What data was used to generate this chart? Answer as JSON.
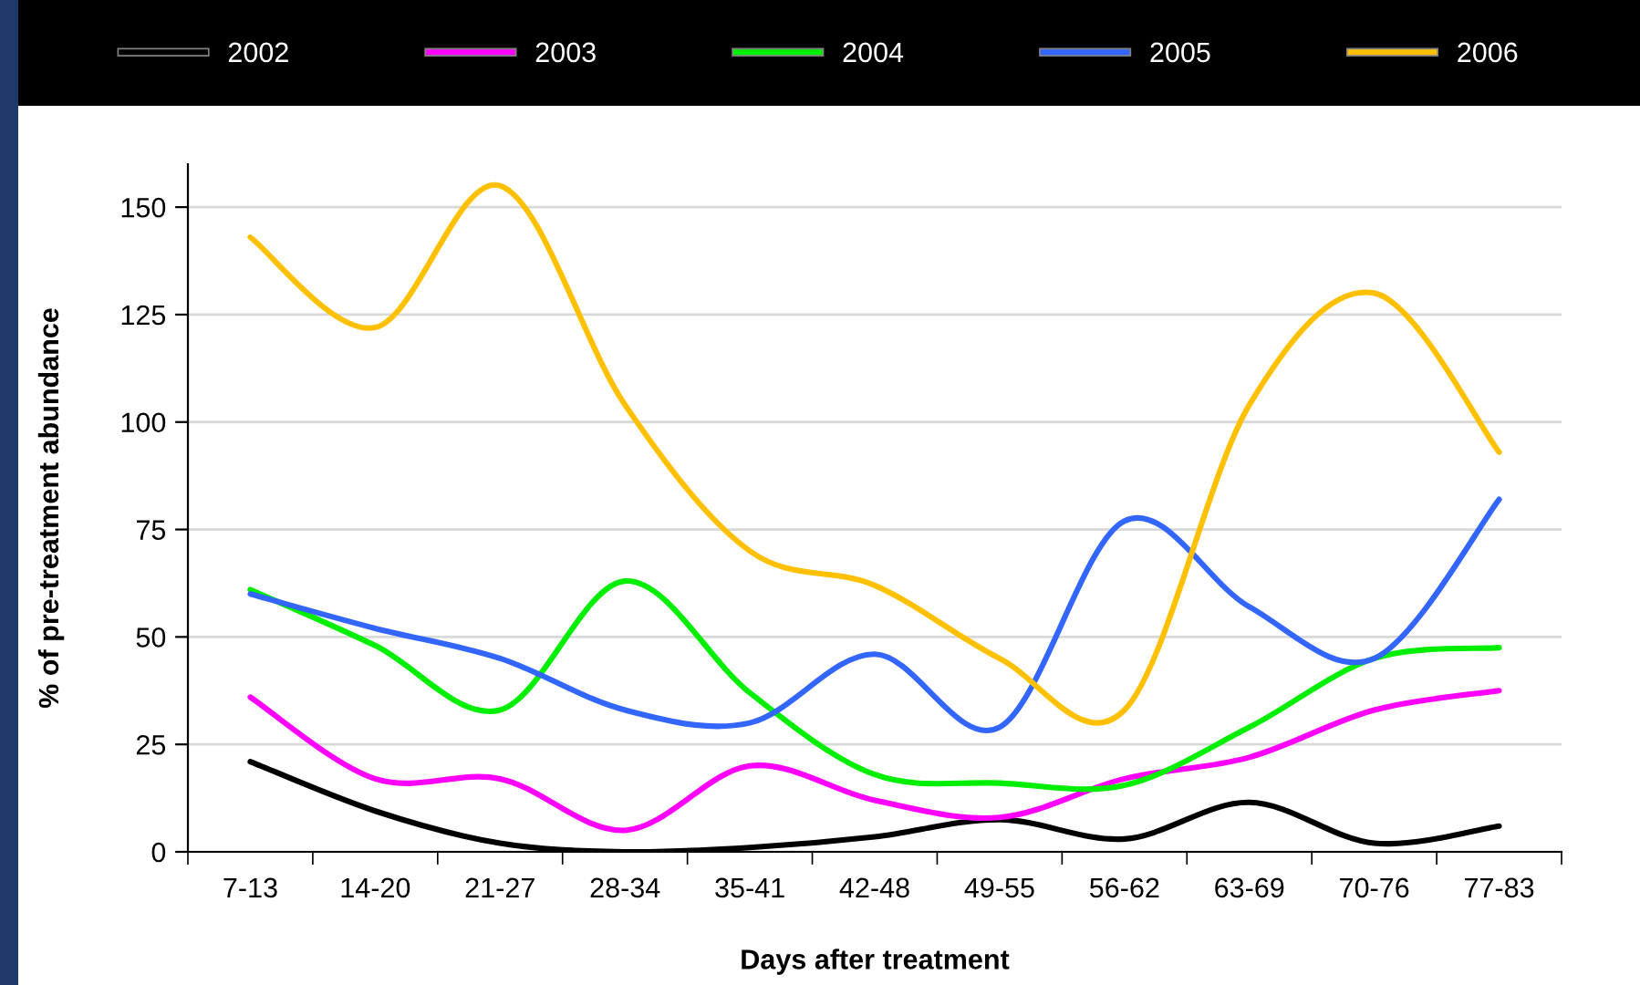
{
  "chart_data": {
    "type": "line",
    "xlabel": "Days after treatment",
    "ylabel": "% of pre-treatment abundance",
    "categories": [
      "7-13",
      "14-20",
      "21-27",
      "28-34",
      "35-41",
      "42-48",
      "49-55",
      "56-62",
      "63-69",
      "70-76",
      "77-83"
    ],
    "series": [
      {
        "name": "2002",
        "color": "#000000",
        "values": [
          21,
          9.5,
          2,
          0,
          1,
          3.5,
          7.5,
          3,
          11.5,
          2,
          6
        ]
      },
      {
        "name": "2003",
        "color": "#ff00ff",
        "values": [
          36,
          17,
          17,
          5,
          20,
          12,
          8,
          17,
          22,
          33,
          37.5
        ]
      },
      {
        "name": "2004",
        "color": "#00ee00",
        "values": [
          61,
          48,
          33,
          63,
          37,
          18,
          16,
          15.5,
          29,
          45,
          47.5
        ]
      },
      {
        "name": "2005",
        "color": "#3366ff",
        "values": [
          60,
          52,
          45,
          33,
          30,
          46,
          29,
          77,
          57,
          45,
          82
        ]
      },
      {
        "name": "2006",
        "color": "#ffc000",
        "values": [
          143,
          122,
          155,
          104,
          70,
          62,
          45,
          33,
          104,
          130,
          93
        ]
      }
    ],
    "ylim": [
      0,
      160
    ],
    "yticks": [
      0,
      25,
      50,
      75,
      100,
      125,
      150
    ],
    "grid": "y",
    "legend": "top",
    "marker": "none",
    "line_style": "solid"
  }
}
